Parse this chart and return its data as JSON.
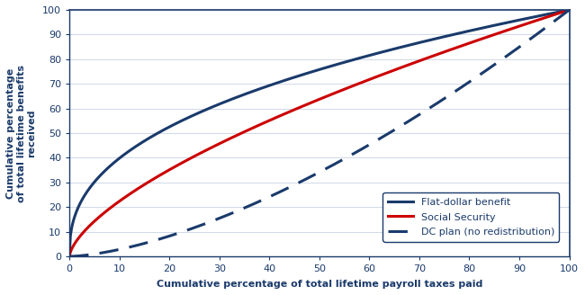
{
  "ylabel_line1": "Cumulative percentage",
  "ylabel_line2": "of total lifetime benefits",
  "ylabel_line3": "received",
  "xlabel": "Cumulative percentage of total lifetime payroll taxes paid",
  "xlim": [
    0,
    100
  ],
  "ylim": [
    0,
    100
  ],
  "xticks": [
    0,
    10,
    20,
    30,
    40,
    50,
    60,
    70,
    80,
    90,
    100
  ],
  "yticks": [
    0,
    10,
    20,
    30,
    40,
    50,
    60,
    70,
    80,
    90,
    100
  ],
  "flat_dollar_color": "#1a3a6b",
  "social_security_color": "#cc0000",
  "dc_plan_color": "#1a3a6b",
  "alpha_flat": 0.4,
  "alpha_ss": 0.65,
  "alpha_dc": 1.55,
  "legend_labels": [
    "Flat-dollar benefit",
    "Social Security",
    "DC plan (no redistribution)"
  ],
  "line_width": 2.2,
  "axis_color": "#1a3a6b",
  "tick_label_color": "#1a3a6b",
  "label_color": "#1a3a6b",
  "grid_color": "#d0d8e8"
}
